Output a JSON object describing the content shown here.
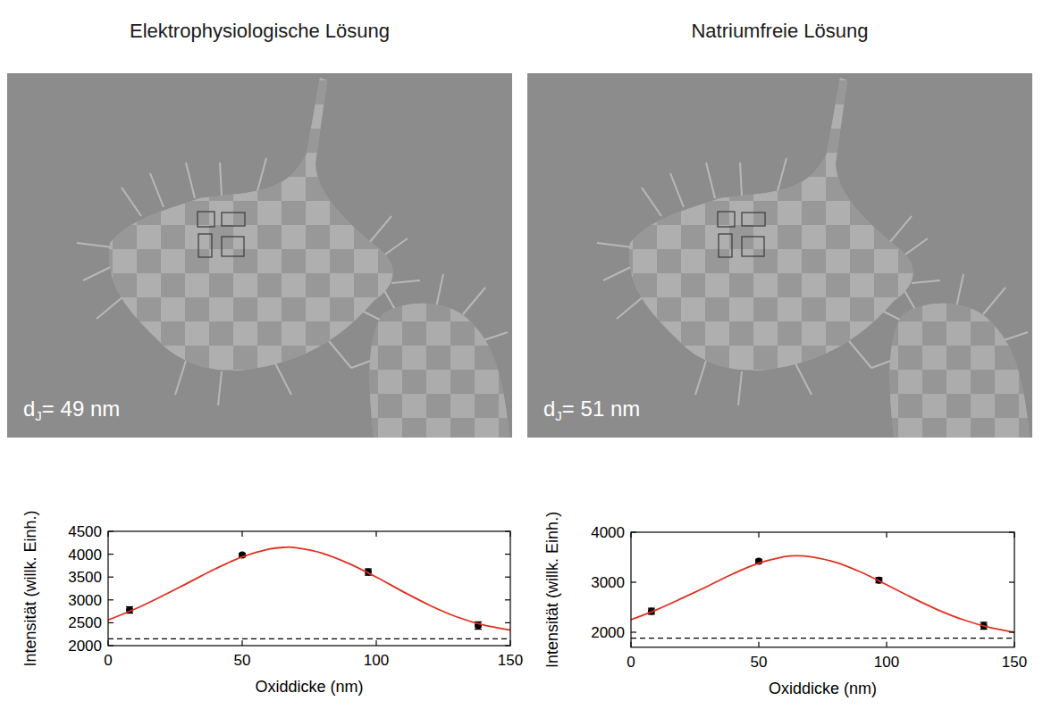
{
  "chart_data": [
    {
      "type": "line",
      "title": "Elektrophysiologische Lösung",
      "annotation": {
        "text": "d",
        "subscript": "J",
        "rest": "= 49 nm"
      },
      "xlabel": "Oxiddicke (nm)",
      "ylabel": "Intensität (willk. Einh.)",
      "xlim": [
        0,
        150
      ],
      "xticks": [
        0,
        50,
        100,
        150
      ],
      "ylim": [
        2000,
        4500
      ],
      "yticks": [
        2000,
        2500,
        3000,
        3500,
        4000,
        4500
      ],
      "series": [
        {
          "type": "scatter",
          "marker": "circle",
          "color": "#000000",
          "x": [
            8,
            50,
            97,
            138
          ],
          "values": [
            2780,
            3980,
            3610,
            2440
          ],
          "errors": [
            70,
            40,
            70,
            80
          ]
        },
        {
          "type": "line",
          "line_style": "solid",
          "color": "#e0301e",
          "x": [
            0,
            10,
            20,
            30,
            40,
            50,
            60,
            66,
            70,
            80,
            90,
            100,
            110,
            120,
            130,
            140,
            150
          ],
          "values": [
            2560,
            2800,
            3080,
            3380,
            3680,
            3940,
            4110,
            4150,
            4140,
            4020,
            3790,
            3500,
            3180,
            2880,
            2630,
            2450,
            2340
          ]
        },
        {
          "type": "line",
          "line_style": "dashed",
          "color": "#000000",
          "x": [
            0,
            150
          ],
          "values": [
            2150,
            2150
          ]
        }
      ]
    },
    {
      "type": "line",
      "title": "Natriumfreie Lösung",
      "annotation": {
        "text": "d",
        "subscript": "J",
        "rest": "= 51 nm"
      },
      "xlabel": "Oxiddicke (nm)",
      "ylabel": "Intensität (willk. Einh.)",
      "xlim": [
        0,
        150
      ],
      "xticks": [
        0,
        50,
        100,
        150
      ],
      "ylim": [
        1700,
        4000
      ],
      "yticks": [
        2000,
        3000,
        4000
      ],
      "series": [
        {
          "type": "scatter",
          "marker": "circle",
          "color": "#000000",
          "x": [
            8,
            50,
            97,
            138
          ],
          "values": [
            2420,
            3420,
            3040,
            2130
          ],
          "errors": [
            60,
            40,
            50,
            70
          ]
        },
        {
          "type": "line",
          "line_style": "solid",
          "color": "#e0301e",
          "x": [
            0,
            10,
            20,
            30,
            40,
            50,
            60,
            65,
            70,
            80,
            90,
            100,
            110,
            120,
            130,
            140,
            150
          ],
          "values": [
            2250,
            2450,
            2680,
            2920,
            3170,
            3380,
            3510,
            3530,
            3510,
            3400,
            3200,
            2950,
            2690,
            2450,
            2250,
            2100,
            2000
          ]
        },
        {
          "type": "line",
          "line_style": "dashed",
          "color": "#000000",
          "x": [
            0,
            150
          ],
          "values": [
            1880,
            1880
          ]
        }
      ]
    }
  ]
}
